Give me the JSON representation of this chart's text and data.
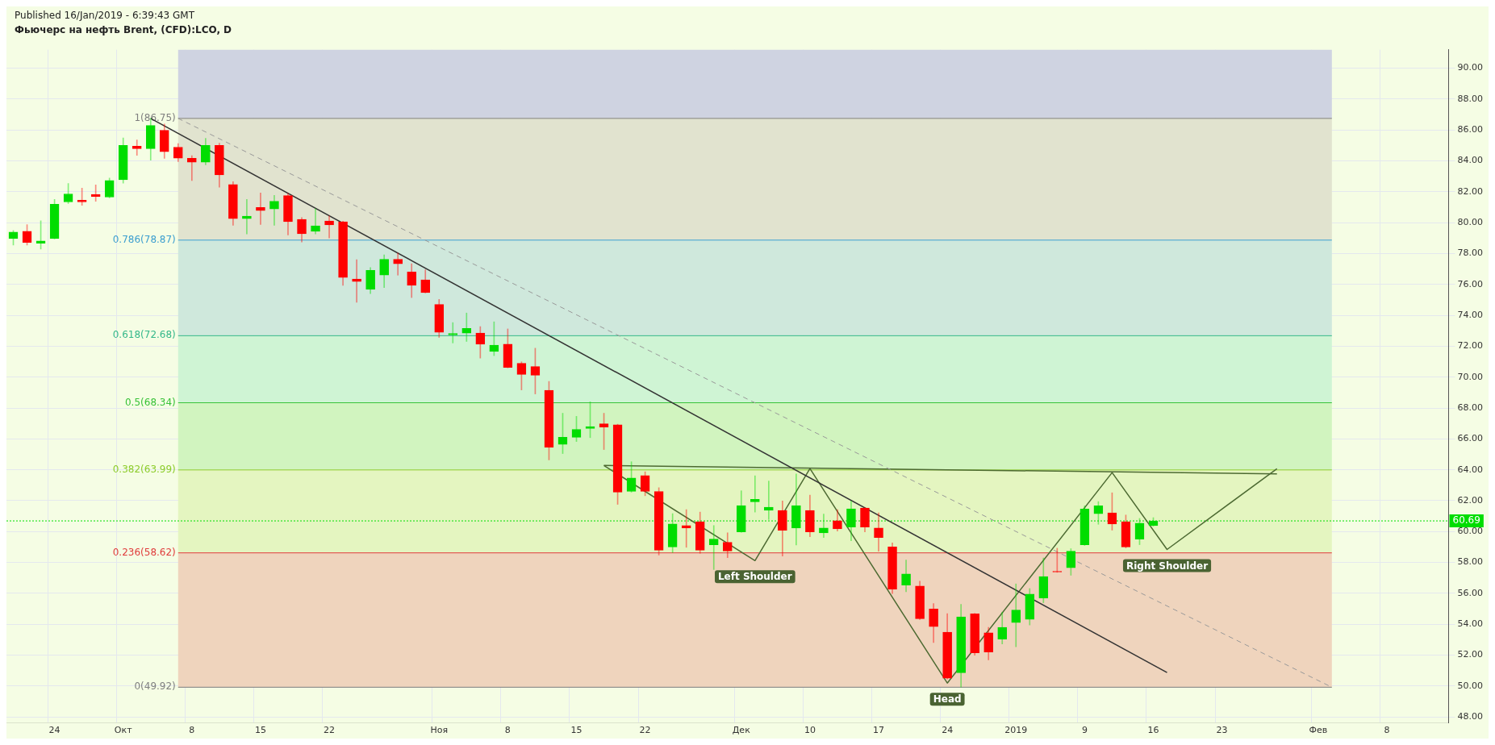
{
  "chart_data": {
    "type": "candlestick",
    "title": "Фьючерс на нефть Brent, (CFD):LCO, D",
    "annotations": [
      "Published 16/Jan/2019 - 6:39:43 GMT"
    ],
    "categories": [
      null,
      null,
      null,
      "24",
      null,
      null,
      null,
      null,
      "Окт",
      null,
      null,
      null,
      null,
      "8",
      null,
      null,
      null,
      null,
      "15",
      null,
      null,
      null,
      null,
      "22",
      null,
      null,
      null,
      null,
      null,
      null,
      null,
      "Ноя",
      null,
      null,
      null,
      null,
      "8",
      null,
      null,
      null,
      null,
      "15",
      null,
      null,
      null,
      null,
      "22",
      null,
      null,
      null,
      null,
      null,
      null,
      "Дек",
      null,
      null,
      null,
      null,
      "10",
      null,
      null,
      null,
      null,
      "17",
      null,
      null,
      null,
      null,
      "24",
      null,
      null,
      null,
      null,
      "2019",
      null,
      null,
      null,
      null,
      "9",
      null,
      null,
      null,
      null,
      "16",
      null,
      null,
      null,
      null,
      "23",
      null,
      null,
      null,
      null,
      null,
      null,
      "Фев",
      null,
      null,
      null,
      null,
      "8",
      null,
      null,
      null,
      null
    ],
    "ohlc": [
      [
        78.97,
        79.49,
        78.55,
        79.39
      ],
      [
        79.44,
        79.87,
        78.55,
        78.72
      ],
      [
        78.67,
        80.12,
        78.29,
        78.82
      ],
      [
        78.97,
        81.51,
        78.95,
        81.19
      ],
      [
        81.34,
        82.54,
        81.24,
        81.86
      ],
      [
        81.45,
        82.24,
        81.12,
        81.34
      ],
      [
        81.82,
        82.44,
        81.38,
        81.7
      ],
      [
        81.65,
        82.89,
        81.6,
        82.73
      ],
      [
        82.78,
        85.48,
        82.56,
        85.0
      ],
      [
        84.95,
        85.36,
        84.36,
        84.79
      ],
      [
        84.79,
        86.75,
        84.05,
        86.29
      ],
      [
        85.98,
        86.39,
        84.16,
        84.59
      ],
      [
        84.89,
        85.12,
        83.95,
        84.17
      ],
      [
        84.17,
        84.33,
        82.72,
        83.92
      ],
      [
        83.92,
        85.46,
        83.74,
        85.0
      ],
      [
        85.0,
        85.15,
        82.3,
        83.09
      ],
      [
        82.47,
        82.65,
        79.83,
        80.26
      ],
      [
        80.26,
        81.51,
        79.27,
        80.42
      ],
      [
        80.98,
        81.92,
        79.88,
        80.78
      ],
      [
        80.88,
        81.77,
        79.83,
        81.39
      ],
      [
        81.75,
        81.89,
        79.2,
        80.06
      ],
      [
        80.21,
        80.33,
        78.75,
        79.28
      ],
      [
        79.44,
        80.9,
        79.27,
        79.8
      ],
      [
        80.11,
        80.43,
        79.01,
        79.85
      ],
      [
        80.06,
        80.09,
        75.94,
        76.45
      ],
      [
        76.35,
        77.6,
        74.85,
        76.19
      ],
      [
        75.68,
        77.09,
        75.4,
        76.91
      ],
      [
        76.6,
        77.91,
        75.8,
        77.63
      ],
      [
        77.63,
        78.03,
        76.6,
        77.33
      ],
      [
        76.81,
        77.34,
        75.15,
        75.94
      ],
      [
        76.3,
        76.95,
        75.45,
        75.47
      ],
      [
        74.7,
        75.03,
        72.57,
        72.9
      ],
      [
        72.73,
        73.53,
        72.21,
        72.83
      ],
      [
        72.85,
        74.15,
        72.31,
        73.15
      ],
      [
        72.85,
        73.27,
        71.23,
        72.13
      ],
      [
        71.66,
        73.58,
        71.39,
        72.07
      ],
      [
        72.13,
        73.12,
        70.6,
        70.63
      ],
      [
        70.89,
        70.99,
        69.17,
        70.17
      ],
      [
        70.68,
        71.87,
        68.91,
        70.12
      ],
      [
        69.14,
        69.72,
        64.64,
        65.46
      ],
      [
        65.64,
        67.66,
        65.05,
        66.1
      ],
      [
        66.1,
        67.46,
        65.83,
        66.61
      ],
      [
        66.67,
        68.4,
        66.08,
        66.79
      ],
      [
        66.98,
        67.66,
        65.31,
        66.77
      ],
      [
        66.92,
        66.95,
        61.76,
        62.55
      ],
      [
        62.6,
        64.52,
        62.55,
        63.47
      ],
      [
        63.63,
        63.87,
        62.32,
        62.6
      ],
      [
        62.6,
        62.84,
        58.48,
        58.79
      ],
      [
        59.0,
        61.16,
        58.63,
        60.49
      ],
      [
        60.39,
        61.42,
        58.98,
        60.23
      ],
      [
        60.64,
        61.26,
        58.59,
        58.79
      ],
      [
        59.15,
        60.39,
        57.54,
        59.51
      ],
      [
        59.31,
        59.92,
        58.31,
        58.74
      ],
      [
        59.98,
        62.64,
        59.95,
        61.68
      ],
      [
        61.93,
        63.61,
        61.26,
        62.09
      ],
      [
        61.37,
        63.27,
        60.78,
        61.57
      ],
      [
        61.37,
        61.98,
        58.41,
        60.08
      ],
      [
        60.23,
        63.73,
        59.13,
        61.68
      ],
      [
        61.37,
        62.36,
        59.67,
        59.98
      ],
      [
        59.92,
        61.13,
        59.62,
        60.23
      ],
      [
        60.7,
        61.42,
        60.03,
        60.18
      ],
      [
        60.29,
        61.98,
        59.41,
        61.47
      ],
      [
        61.52,
        61.55,
        59.98,
        60.29
      ],
      [
        60.23,
        61.21,
        58.72,
        59.62
      ],
      [
        59.0,
        59.26,
        55.98,
        56.27
      ],
      [
        56.53,
        58.16,
        56.1,
        57.25
      ],
      [
        56.47,
        56.78,
        54.3,
        54.36
      ],
      [
        54.98,
        55.34,
        52.82,
        53.85
      ],
      [
        53.49,
        54.69,
        50.45,
        50.5
      ],
      [
        50.86,
        55.29,
        49.93,
        54.47
      ],
      [
        54.67,
        54.7,
        51.99,
        52.15
      ],
      [
        53.44,
        53.8,
        51.69,
        52.2
      ],
      [
        53.03,
        54.78,
        52.72,
        53.8
      ],
      [
        54.1,
        56.61,
        52.54,
        54.92
      ],
      [
        54.31,
        56.31,
        53.95,
        55.95
      ],
      [
        55.7,
        58.29,
        55.39,
        57.09
      ],
      [
        57.4,
        58.92,
        57.36,
        57.38
      ],
      [
        57.65,
        58.89,
        57.17,
        58.73
      ],
      [
        59.15,
        61.67,
        59.1,
        61.46
      ],
      [
        61.15,
        61.94,
        60.47,
        61.67
      ],
      [
        61.21,
        62.51,
        60.09,
        60.49
      ],
      [
        60.64,
        61.07,
        58.94,
        59.0
      ],
      [
        59.51,
        60.85,
        59.15,
        60.54
      ],
      [
        60.38,
        60.9,
        60.35,
        60.69
      ],
      null,
      null,
      null,
      null,
      null,
      null,
      null,
      null,
      null,
      null,
      null,
      null,
      null,
      null,
      null,
      null,
      null,
      null,
      null,
      null,
      null
    ],
    "colors": [
      "#00dd00",
      "#ff0000",
      "#00dd00",
      "#00dd00",
      "#00dd00",
      "#ff0000",
      "#ff0000",
      "#00dd00",
      "#00dd00",
      "#ff0000",
      "#00dd00",
      "#ff0000",
      "#ff0000",
      "#ff0000",
      "#00dd00",
      "#ff0000",
      "#ff0000",
      "#00dd00",
      "#ff0000",
      "#00dd00",
      "#ff0000",
      "#ff0000",
      "#00dd00",
      "#ff0000",
      "#ff0000",
      "#ff0000",
      "#00dd00",
      "#00dd00",
      "#ff0000",
      "#ff0000",
      "#ff0000",
      "#ff0000",
      "#00dd00",
      "#00dd00",
      "#ff0000",
      "#00dd00",
      "#ff0000",
      "#ff0000",
      "#ff0000",
      "#ff0000",
      "#00dd00",
      "#00dd00",
      "#00dd00",
      "#ff0000",
      "#ff0000",
      "#00dd00",
      "#ff0000",
      "#ff0000",
      "#00dd00",
      "#ff0000",
      "#ff0000",
      "#00dd00",
      "#ff0000",
      "#00dd00",
      "#00dd00",
      "#00dd00",
      "#ff0000",
      "#00dd00",
      "#ff0000",
      "#00dd00",
      "#ff0000",
      "#00dd00",
      "#ff0000",
      "#ff0000",
      "#ff0000",
      "#00dd00",
      "#ff0000",
      "#ff0000",
      "#ff0000",
      "#00dd00",
      "#ff0000",
      "#ff0000",
      "#00dd00",
      "#00dd00",
      "#00dd00",
      "#00dd00",
      "#ff0000",
      "#00dd00",
      "#00dd00",
      "#00dd00",
      "#ff0000",
      "#ff0000",
      "#00dd00",
      "#00dd00",
      null,
      null,
      null,
      null,
      null,
      null,
      null,
      null,
      null,
      null,
      null,
      null,
      null,
      null,
      null,
      null,
      null,
      null,
      null,
      null,
      null
    ],
    "series": [
      {
        "type": "line",
        "color": "#333333",
        "line_style": "solid",
        "values": [
          null,
          null,
          null,
          null,
          null,
          null,
          null,
          null,
          null,
          null,
          86.75,
          null,
          null,
          null,
          null,
          null,
          null,
          null,
          null,
          null,
          null,
          null,
          null,
          null,
          null,
          null,
          null,
          null,
          null,
          null,
          null,
          null,
          null,
          null,
          null,
          null,
          null,
          null,
          null,
          null,
          null,
          null,
          null,
          null,
          null,
          null,
          null,
          null,
          null,
          null,
          null,
          null,
          null,
          null,
          null,
          null,
          null,
          null,
          null,
          null,
          null,
          null,
          null,
          null,
          null,
          null,
          null,
          null,
          null,
          null,
          null,
          null,
          null,
          null,
          null,
          null,
          null,
          null,
          null,
          null,
          null,
          null,
          null,
          null,
          50.87,
          null,
          null,
          null,
          null,
          null,
          null,
          null,
          null,
          null,
          null,
          null,
          null,
          null,
          null,
          null,
          null,
          null,
          null,
          null,
          null
        ]
      },
      {
        "type": "line",
        "color": "#999999",
        "line_style": "dashed",
        "values": [
          null,
          null,
          null,
          null,
          null,
          null,
          null,
          null,
          null,
          null,
          null,
          null,
          86.75,
          null,
          null,
          null,
          null,
          null,
          null,
          null,
          null,
          null,
          null,
          null,
          null,
          null,
          null,
          null,
          null,
          null,
          null,
          null,
          null,
          null,
          null,
          null,
          null,
          null,
          null,
          null,
          null,
          null,
          null,
          null,
          null,
          null,
          null,
          null,
          null,
          null,
          null,
          null,
          null,
          null,
          null,
          null,
          null,
          null,
          null,
          null,
          null,
          null,
          null,
          null,
          null,
          null,
          null,
          null,
          null,
          null,
          null,
          null,
          null,
          null,
          null,
          null,
          null,
          null,
          null,
          null,
          null,
          null,
          null,
          null,
          null,
          null,
          null,
          null,
          null,
          null,
          null,
          null,
          null,
          null,
          null,
          null,
          49.92,
          null,
          null,
          null,
          null,
          null,
          null,
          null,
          null
        ]
      },
      {
        "type": "line",
        "color": "#4d6a32",
        "line_style": "solid",
        "values": [
          null,
          null,
          null,
          null,
          null,
          null,
          null,
          null,
          null,
          null,
          null,
          null,
          null,
          null,
          null,
          null,
          null,
          null,
          null,
          null,
          null,
          null,
          null,
          null,
          null,
          null,
          null,
          null,
          null,
          null,
          null,
          null,
          null,
          null,
          null,
          null,
          null,
          null,
          null,
          null,
          null,
          null,
          null,
          64.28,
          null,
          null,
          null,
          null,
          null,
          null,
          null,
          null,
          null,
          null,
          58.12,
          null,
          null,
          null,
          64.08,
          null,
          null,
          null,
          null,
          null,
          null,
          null,
          null,
          null,
          50.19,
          null,
          null,
          null,
          null,
          null,
          null,
          null,
          null,
          null,
          null,
          null,
          63.82,
          null,
          null,
          null,
          58.84,
          null,
          null,
          null,
          null,
          null,
          null,
          null,
          64.07,
          null,
          null,
          null,
          null,
          null,
          null,
          null,
          null,
          null,
          null,
          null,
          null
        ],
        "value_labels": [
          null,
          null,
          null,
          null,
          null,
          null,
          null,
          null,
          null,
          null,
          null,
          null,
          null,
          null,
          null,
          null,
          null,
          null,
          null,
          null,
          null,
          null,
          null,
          null,
          null,
          null,
          null,
          null,
          null,
          null,
          null,
          null,
          null,
          null,
          null,
          null,
          null,
          null,
          null,
          null,
          null,
          null,
          null,
          null,
          null,
          null,
          null,
          null,
          null,
          null,
          null,
          null,
          null,
          null,
          "Left Shoulder",
          null,
          null,
          null,
          null,
          null,
          null,
          null,
          null,
          null,
          null,
          null,
          null,
          null,
          "Head",
          null,
          null,
          null,
          null,
          null,
          null,
          null,
          null,
          null,
          null,
          null,
          null,
          null,
          null,
          null,
          "Right Shoulder",
          null,
          null,
          null,
          null,
          null,
          null,
          null,
          null,
          null,
          null,
          null,
          null,
          null,
          null,
          null,
          null,
          null,
          null,
          null,
          null
        ]
      },
      {
        "type": "line",
        "color": "#4d6a32",
        "line_style": "solid",
        "values": [
          null,
          null,
          null,
          null,
          null,
          null,
          null,
          null,
          null,
          null,
          null,
          null,
          null,
          null,
          null,
          null,
          null,
          null,
          null,
          null,
          null,
          null,
          null,
          null,
          null,
          null,
          null,
          null,
          null,
          null,
          null,
          null,
          null,
          null,
          null,
          null,
          null,
          null,
          null,
          null,
          null,
          null,
          null,
          64.28,
          null,
          null,
          null,
          null,
          null,
          null,
          null,
          null,
          null,
          null,
          null,
          null,
          null,
          null,
          null,
          null,
          null,
          null,
          null,
          null,
          null,
          null,
          null,
          null,
          null,
          null,
          null,
          null,
          null,
          null,
          null,
          null,
          null,
          null,
          null,
          null,
          null,
          null,
          null,
          null,
          null,
          null,
          null,
          null,
          null,
          null,
          null,
          null,
          63.73,
          null,
          null,
          null,
          null,
          null,
          null,
          null,
          null,
          null,
          null,
          null,
          null
        ]
      }
    ],
    "ref_lines": [
      {
        "axis": "y",
        "value": 86.75,
        "label": "1(86.75)",
        "color": "#7f7f7f"
      },
      {
        "axis": "y",
        "value": 78.87,
        "label": "0.786(78.87)",
        "color": "#3d9fcf"
      },
      {
        "axis": "y",
        "value": 72.68,
        "label": "0.618(72.68)",
        "color": "#35b88a"
      },
      {
        "axis": "y",
        "value": 68.34,
        "label": "0.5(68.34)",
        "color": "#38c238"
      },
      {
        "axis": "y",
        "value": 63.99,
        "label": "0.382(63.99)",
        "color": "#8ccc2a"
      },
      {
        "axis": "y",
        "value": 58.62,
        "label": "0.236(58.62)",
        "color": "#e03c3c"
      },
      {
        "axis": "y",
        "value": 49.92,
        "label": "0(49.92)",
        "color": "#7f7f7f"
      },
      {
        "axis": "y",
        "value": 60.69,
        "label": "60.69",
        "color": "#00dd00",
        "line_style": "dotted"
      }
    ],
    "bands": [
      {
        "axis": "y",
        "from": 86.75,
        "to": 91.2,
        "color": "#cfd3e1"
      },
      {
        "axis": "y",
        "from": 78.87,
        "to": 86.75,
        "color": "#e1e3cf"
      },
      {
        "axis": "y",
        "from": 72.68,
        "to": 78.87,
        "color": "#cfe8dc"
      },
      {
        "axis": "y",
        "from": 68.34,
        "to": 72.68,
        "color": "#cff4d4"
      },
      {
        "axis": "y",
        "from": 63.99,
        "to": 68.34,
        "color": "#d1f4bf"
      },
      {
        "axis": "y",
        "from": 58.62,
        "to": 63.99,
        "color": "#e4f5c0"
      },
      {
        "axis": "y",
        "from": 49.92,
        "to": 58.62,
        "color": "#efd4bd"
      }
    ],
    "ylim": [
      47.6,
      91.2
    ],
    "yticks": [
      {
        "value": 48,
        "label": "48.00"
      },
      {
        "value": 50,
        "label": "50.00"
      },
      {
        "value": 52,
        "label": "52.00"
      },
      {
        "value": 54,
        "label": "54.00"
      },
      {
        "value": 56,
        "label": "56.00"
      },
      {
        "value": 58,
        "label": "58.00"
      },
      {
        "value": 60,
        "label": "60.00"
      },
      {
        "value": 62,
        "label": "62.00"
      },
      {
        "value": 64,
        "label": "64.00"
      },
      {
        "value": 66,
        "label": "66.00"
      },
      {
        "value": 68,
        "label": "68.00"
      },
      {
        "value": 70,
        "label": "70.00"
      },
      {
        "value": 72,
        "label": "72.00"
      },
      {
        "value": 74,
        "label": "74.00"
      },
      {
        "value": 76,
        "label": "76.00"
      },
      {
        "value": 78,
        "label": "78.00"
      },
      {
        "value": 80,
        "label": "80.00"
      },
      {
        "value": 82,
        "label": "82.00"
      },
      {
        "value": 84,
        "label": "84.00"
      },
      {
        "value": 86,
        "label": "86.00"
      },
      {
        "value": 88,
        "label": "88.00"
      },
      {
        "value": 90,
        "label": "90.00"
      }
    ],
    "grid": true
  }
}
